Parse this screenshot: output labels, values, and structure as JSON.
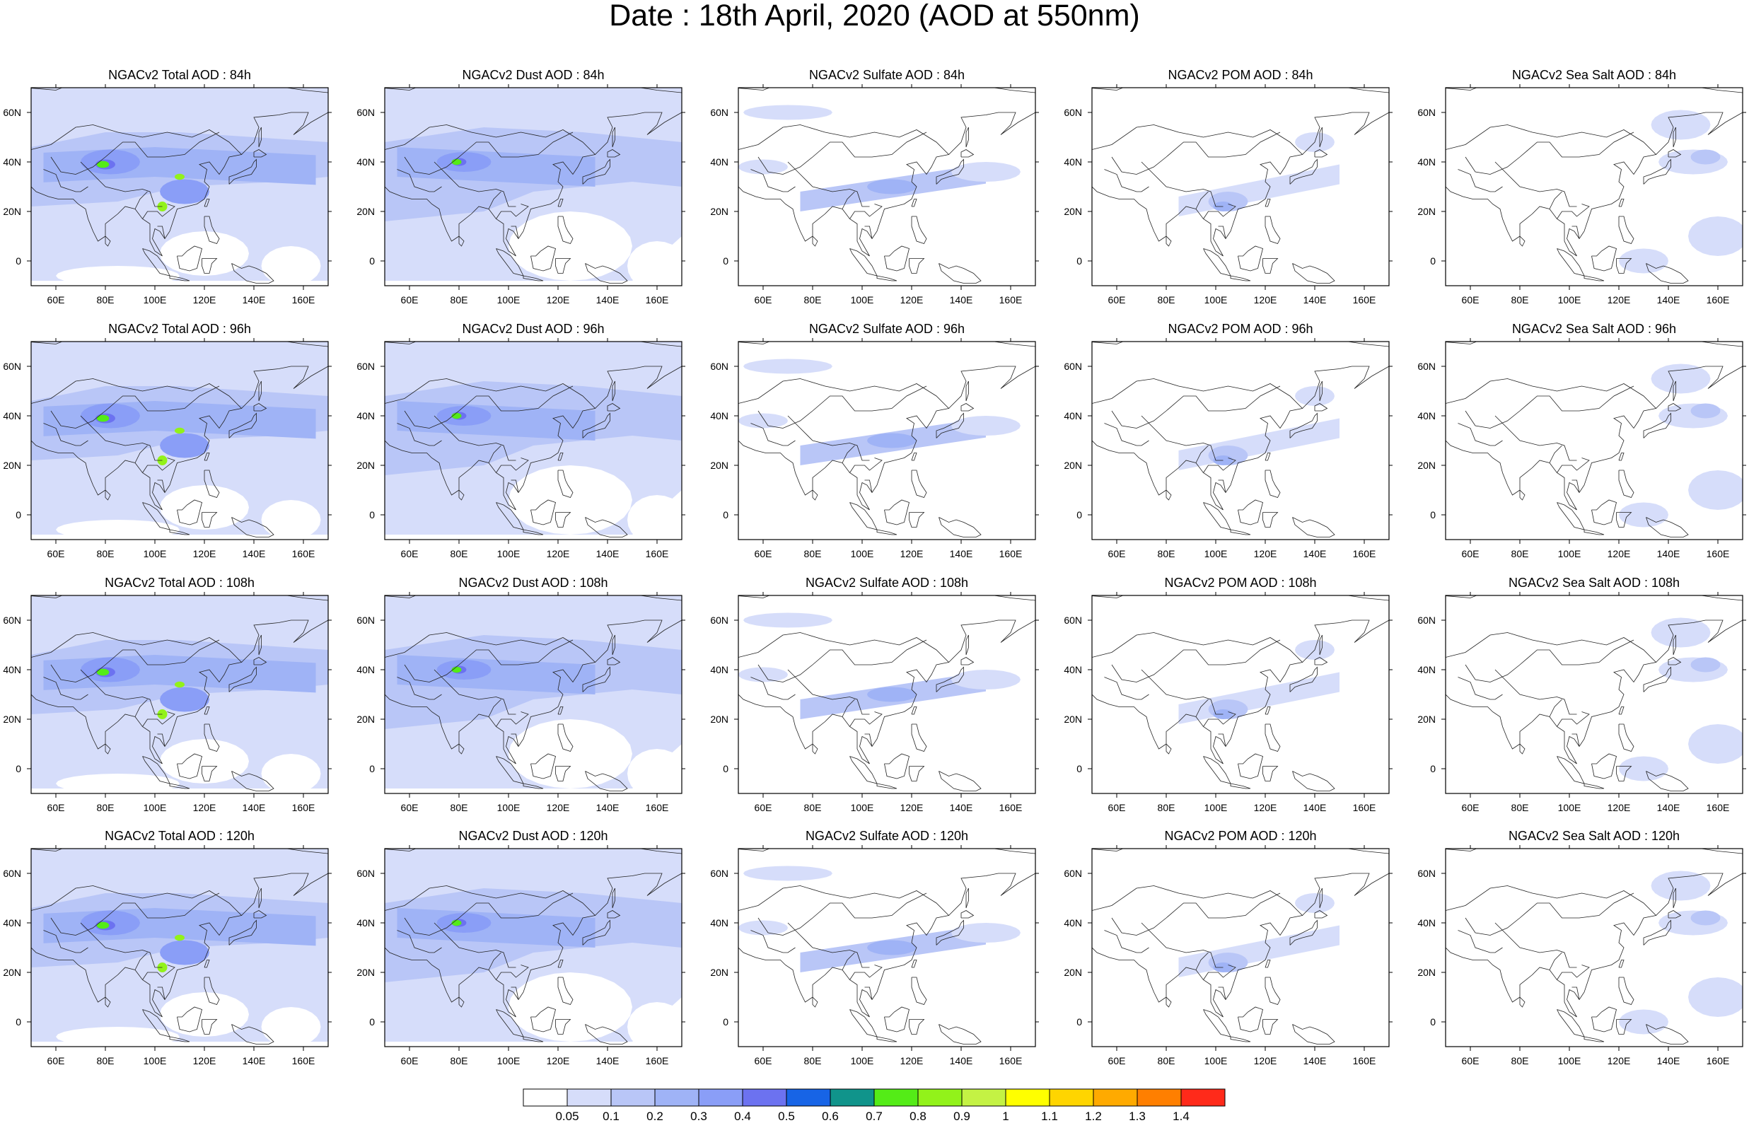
{
  "title": "Date : 18th April, 2020 (AOD at 550nm)",
  "panel_titles": [
    [
      "NGACv2 Total AOD : 84h",
      "NGACv2 Dust AOD : 84h",
      "NGACv2 Sulfate AOD : 84h",
      "NGACv2 POM AOD : 84h",
      "NGACv2 Sea Salt AOD : 84h"
    ],
    [
      "NGACv2 Total AOD : 96h",
      "NGACv2 Dust AOD : 96h",
      "NGACv2 Sulfate AOD : 96h",
      "NGACv2 POM AOD : 96h",
      "NGACv2 Sea Salt AOD : 96h"
    ],
    [
      "NGACv2 Total AOD : 108h",
      "NGACv2 Dust AOD : 108h",
      "NGACv2 Sulfate AOD : 108h",
      "NGACv2 POM AOD : 108h",
      "NGACv2 Sea Salt AOD : 108h"
    ],
    [
      "NGACv2 Total AOD : 120h",
      "NGACv2 Dust AOD : 120h",
      "NGACv2 Sulfate AOD : 120h",
      "NGACv2 POM AOD : 120h",
      "NGACv2 Sea Salt  AOD : 120h"
    ]
  ],
  "map_extent": {
    "lon": [
      50,
      170
    ],
    "lat": [
      -10,
      70
    ]
  },
  "lon_ticks": [
    {
      "value": 60,
      "label": "60E"
    },
    {
      "value": 80,
      "label": "80E"
    },
    {
      "value": 100,
      "label": "100E"
    },
    {
      "value": 120,
      "label": "120E"
    },
    {
      "value": 140,
      "label": "140E"
    },
    {
      "value": 160,
      "label": "160E"
    }
  ],
  "lat_ticks": [
    {
      "value": 60,
      "label": "60N"
    },
    {
      "value": 40,
      "label": "40N"
    },
    {
      "value": 20,
      "label": "20N"
    },
    {
      "value": 0,
      "label": "0"
    }
  ],
  "colorbar": {
    "labels": [
      "0.05",
      "0.1",
      "0.2",
      "0.3",
      "0.4",
      "0.5",
      "0.6",
      "0.7",
      "0.8",
      "0.9",
      "1",
      "1.1",
      "1.2",
      "1.3",
      "1.4"
    ],
    "colors": [
      "#ffffff",
      "#d6ddfa",
      "#b9c6f7",
      "#9fb3f6",
      "#8a9ef7",
      "#6c72f0",
      "#1764e6",
      "#10948b",
      "#54ec17",
      "#92f21a",
      "#c4f244",
      "#ffff00",
      "#ffd500",
      "#ffaa00",
      "#ff7f00",
      "#ff2a1a"
    ]
  },
  "shading_colors": [
    "#ffffff",
    "#d6ddfa",
    "#b9c6f7",
    "#9fb3f6",
    "#8a9ef7",
    "#6c72f0",
    "#1764e6",
    "#10948b",
    "#54ec17",
    "#92f21a",
    "#c4f244"
  ]
}
